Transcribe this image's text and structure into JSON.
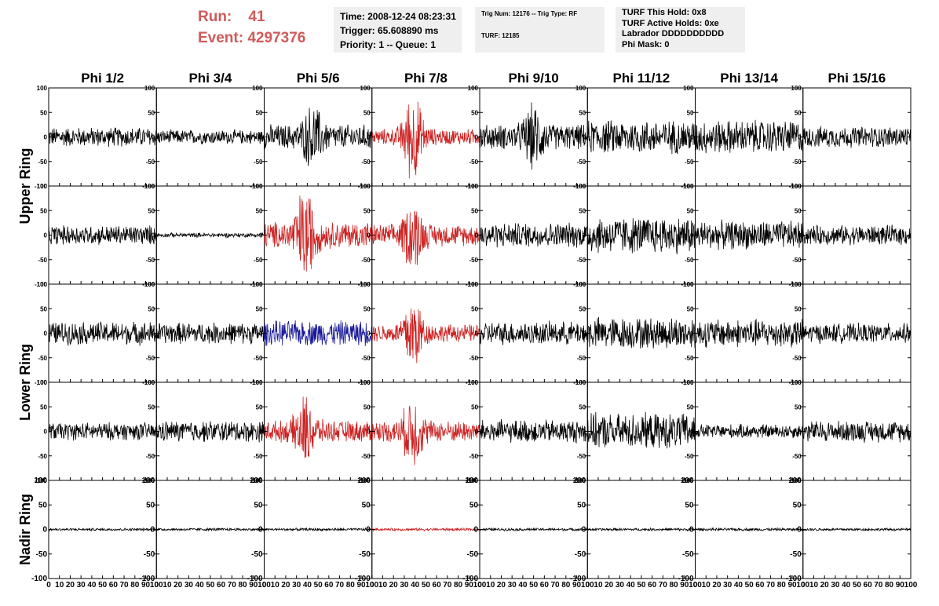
{
  "header": {
    "run_label": "Run:",
    "run_value": "41",
    "event_label": "Event:",
    "event_value": "4297376",
    "time": "Time: 2008-12-24 08:23:31",
    "trigger": "Trigger: 65.608890 ms",
    "priority": "Priority: 1 -- Queue: 1",
    "trig_num": "Trig Num: 12176 -- Trig Type: RF",
    "turf": "TURF: 12185",
    "turf_hold": "TURF This Hold: 0x8",
    "turf_active": "TURF Active Holds: 0xe",
    "labrador": "Labrador DDDDDDDDDD",
    "phi_mask": "Phi Mask: 0",
    "accent_color": "#d05a5a"
  },
  "chart_data": {
    "type": "line",
    "columns": [
      "Phi 1/2",
      "Phi 3/4",
      "Phi 5/6",
      "Phi 7/8",
      "Phi 9/10",
      "Phi 11/12",
      "Phi 13/14",
      "Phi 15/16"
    ],
    "ring_labels": [
      {
        "label": "Upper Ring",
        "rows": [
          0,
          1
        ]
      },
      {
        "label": "Lower Ring",
        "rows": [
          2,
          3
        ]
      },
      {
        "label": "Nadir Ring",
        "rows": [
          4
        ]
      }
    ],
    "rows": 5,
    "ylim": [
      -100,
      100
    ],
    "xlim": [
      0,
      100
    ],
    "y_ticks": [
      "100",
      "50",
      "0",
      "-50",
      "-100"
    ],
    "x_ticks": [
      "0",
      "10",
      "20",
      "30",
      "40",
      "50",
      "60",
      "70",
      "80",
      "90",
      "100"
    ],
    "grid": false,
    "colors": {
      "normal": "#000000",
      "triggered": "#cc2222",
      "highlight": "#1a1a99"
    },
    "traces": [
      [
        {
          "amp": 22,
          "color": "normal"
        },
        {
          "amp": 16,
          "color": "normal"
        },
        {
          "amp": 28,
          "color": "normal",
          "pulse_center": 45,
          "pulse_amp": 50
        },
        {
          "amp": 18,
          "color": "triggered",
          "pulse_center": 38,
          "pulse_amp": 88
        },
        {
          "amp": 28,
          "color": "normal",
          "pulse_center": 50,
          "pulse_amp": 50
        },
        {
          "amp": 38,
          "color": "normal"
        },
        {
          "amp": 38,
          "color": "normal"
        },
        {
          "amp": 24,
          "color": "normal"
        }
      ],
      [
        {
          "amp": 22,
          "color": "normal"
        },
        {
          "amp": 5,
          "color": "normal"
        },
        {
          "amp": 30,
          "color": "triggered",
          "pulse_center": 38,
          "pulse_amp": 85
        },
        {
          "amp": 24,
          "color": "triggered",
          "pulse_center": 38,
          "pulse_amp": 62
        },
        {
          "amp": 28,
          "color": "normal"
        },
        {
          "amp": 42,
          "color": "normal"
        },
        {
          "amp": 32,
          "color": "normal"
        },
        {
          "amp": 22,
          "color": "normal"
        }
      ],
      [
        {
          "amp": 26,
          "color": "normal"
        },
        {
          "amp": 24,
          "color": "normal"
        },
        {
          "amp": 28,
          "color": "highlight"
        },
        {
          "amp": 20,
          "color": "triggered",
          "pulse_center": 38,
          "pulse_amp": 75
        },
        {
          "amp": 26,
          "color": "normal"
        },
        {
          "amp": 36,
          "color": "normal"
        },
        {
          "amp": 32,
          "color": "normal"
        },
        {
          "amp": 22,
          "color": "normal"
        }
      ],
      [
        {
          "amp": 20,
          "color": "normal"
        },
        {
          "amp": 24,
          "color": "normal"
        },
        {
          "amp": 24,
          "color": "triggered",
          "pulse_center": 38,
          "pulse_amp": 60
        },
        {
          "amp": 24,
          "color": "triggered",
          "pulse_center": 38,
          "pulse_amp": 62
        },
        {
          "amp": 26,
          "color": "normal"
        },
        {
          "amp": 40,
          "color": "normal"
        },
        {
          "amp": 16,
          "color": "normal"
        },
        {
          "amp": 24,
          "color": "normal"
        }
      ],
      [
        {
          "amp": 3,
          "color": "normal"
        },
        {
          "amp": 3,
          "color": "normal"
        },
        {
          "amp": 3,
          "color": "normal"
        },
        {
          "amp": 3,
          "color": "triggered"
        },
        {
          "amp": 3,
          "color": "normal"
        },
        {
          "amp": 3,
          "color": "normal"
        },
        {
          "amp": 3,
          "color": "normal"
        },
        {
          "amp": 3,
          "color": "normal"
        }
      ]
    ]
  }
}
